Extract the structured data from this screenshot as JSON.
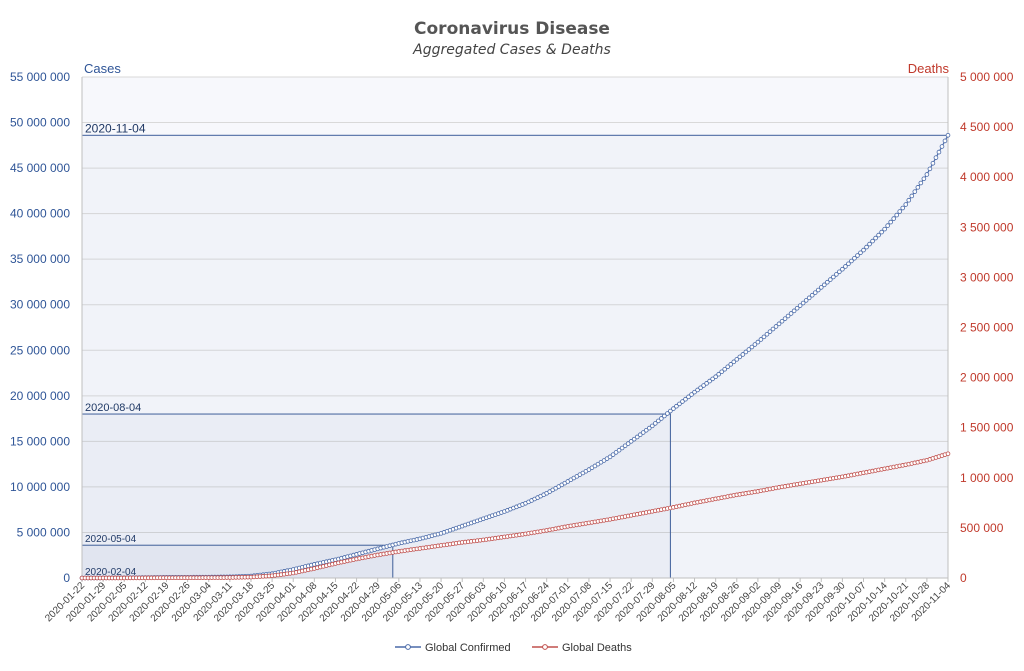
{
  "chart_data": {
    "type": "line",
    "title": "Coronavirus Disease",
    "subtitle": "Aggregated Cases & Deaths",
    "ylabel_left": "Cases",
    "ylabel_right": "Deaths",
    "ylim_left": [
      0,
      55000000
    ],
    "ylim_right": [
      0,
      5000000
    ],
    "yticks_left": [
      "0",
      "5 000 000",
      "10 000 000",
      "15 000 000",
      "20 000 000",
      "25 000 000",
      "30 000 000",
      "35 000 000",
      "40 000 000",
      "45 000 000",
      "50 000 000",
      "55 000 000"
    ],
    "yticks_right": [
      "0",
      "500 000",
      "1 000 000",
      "1 500 000",
      "2 000 000",
      "2 500 000",
      "3 000 000",
      "3 500 000",
      "4 000 000",
      "4 500 000",
      "5 000 000"
    ],
    "x_start": "2020-01-22",
    "x_end": "2020-11-04",
    "xtick_labels": [
      "2020-01-22",
      "2020-01-29",
      "2020-02-05",
      "2020-02-12",
      "2020-02-19",
      "2020-02-26",
      "2020-03-04",
      "2020-03-11",
      "2020-03-18",
      "2020-03-25",
      "2020-04-01",
      "2020-04-08",
      "2020-04-15",
      "2020-04-22",
      "2020-04-29",
      "2020-05-06",
      "2020-05-13",
      "2020-05-20",
      "2020-05-27",
      "2020-06-03",
      "2020-06-10",
      "2020-06-17",
      "2020-06-24",
      "2020-07-01",
      "2020-07-08",
      "2020-07-15",
      "2020-07-22",
      "2020-07-29",
      "2020-08-05",
      "2020-08-12",
      "2020-08-19",
      "2020-08-26",
      "2020-09-02",
      "2020-09-09",
      "2020-09-16",
      "2020-09-23",
      "2020-09-30",
      "2020-10-07",
      "2020-10-14",
      "2020-10-21",
      "2020-10-28",
      "2020-11-04"
    ],
    "grid": true,
    "legend_position": "bottom",
    "series": [
      {
        "name": "Global Confirmed",
        "axis": "left",
        "color": "#4a6aa8",
        "x": [
          "2020-01-22",
          "2020-01-29",
          "2020-02-05",
          "2020-02-12",
          "2020-02-19",
          "2020-02-26",
          "2020-03-04",
          "2020-03-11",
          "2020-03-18",
          "2020-03-25",
          "2020-04-01",
          "2020-04-08",
          "2020-04-15",
          "2020-04-22",
          "2020-04-29",
          "2020-05-06",
          "2020-05-13",
          "2020-05-20",
          "2020-05-27",
          "2020-06-03",
          "2020-06-10",
          "2020-06-17",
          "2020-06-24",
          "2020-07-01",
          "2020-07-08",
          "2020-07-15",
          "2020-07-22",
          "2020-07-29",
          "2020-08-05",
          "2020-08-12",
          "2020-08-19",
          "2020-08-26",
          "2020-09-02",
          "2020-09-09",
          "2020-09-16",
          "2020-09-23",
          "2020-09-30",
          "2020-10-07",
          "2020-10-14",
          "2020-10-21",
          "2020-10-28",
          "2020-11-04"
        ],
        "values": [
          600,
          7800,
          28000,
          45000,
          75000,
          82000,
          95000,
          126000,
          215000,
          470000,
          930000,
          1500000,
          2000000,
          2600000,
          3200000,
          3800000,
          4300000,
          4900000,
          5700000,
          6500000,
          7300000,
          8200000,
          9300000,
          10600000,
          11900000,
          13300000,
          15000000,
          16700000,
          18600000,
          20400000,
          22100000,
          24000000,
          25900000,
          27900000,
          29900000,
          31900000,
          33900000,
          36000000,
          38300000,
          41000000,
          44300000,
          48600000
        ]
      },
      {
        "name": "Global Deaths",
        "axis": "right",
        "color": "#c0504d",
        "x": [
          "2020-01-22",
          "2020-01-29",
          "2020-02-05",
          "2020-02-12",
          "2020-02-19",
          "2020-02-26",
          "2020-03-04",
          "2020-03-11",
          "2020-03-18",
          "2020-03-25",
          "2020-04-01",
          "2020-04-08",
          "2020-04-15",
          "2020-04-22",
          "2020-04-29",
          "2020-05-06",
          "2020-05-13",
          "2020-05-20",
          "2020-05-27",
          "2020-06-03",
          "2020-06-10",
          "2020-06-17",
          "2020-06-24",
          "2020-07-01",
          "2020-07-08",
          "2020-07-15",
          "2020-07-22",
          "2020-07-29",
          "2020-08-05",
          "2020-08-12",
          "2020-08-19",
          "2020-08-26",
          "2020-09-02",
          "2020-09-09",
          "2020-09-16",
          "2020-09-23",
          "2020-09-30",
          "2020-10-07",
          "2020-10-14",
          "2020-10-21",
          "2020-10-28",
          "2020-11-04"
        ],
        "values": [
          17,
          170,
          565,
          1370,
          2250,
          2800,
          3350,
          4600,
          9000,
          22000,
          50000,
          95000,
          145000,
          190000,
          230000,
          265000,
          295000,
          325000,
          355000,
          380000,
          410000,
          440000,
          475000,
          515000,
          550000,
          585000,
          625000,
          665000,
          705000,
          750000,
          790000,
          830000,
          865000,
          905000,
          940000,
          975000,
          1010000,
          1050000,
          1090000,
          1130000,
          1175000,
          1240000
        ]
      }
    ],
    "annotations": [
      {
        "label": "2020-02-04",
        "date": "2020-02-04",
        "cases": 20000
      },
      {
        "label": "2020-05-04",
        "date": "2020-05-04",
        "cases": 3600000
      },
      {
        "label": "2020-08-04",
        "date": "2020-08-04",
        "cases": 18000000
      },
      {
        "label": "2020-11-04",
        "date": "2020-11-04",
        "cases": 48600000
      }
    ]
  }
}
